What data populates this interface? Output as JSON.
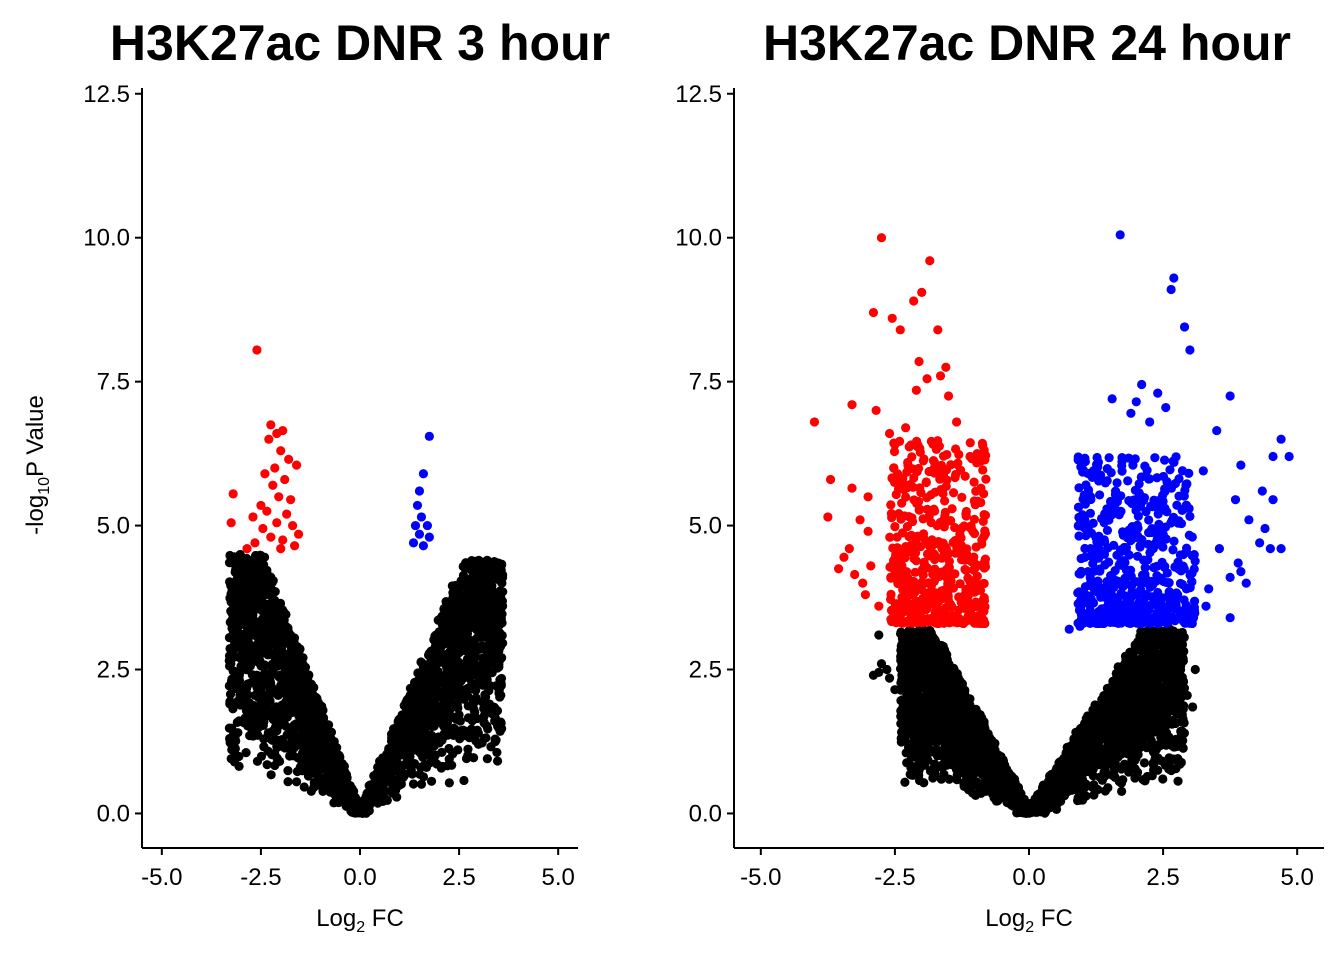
{
  "chart_data": [
    {
      "type": "scatter",
      "title": "H3K27ac DNR 3 hour",
      "xlabel_base": "Log",
      "xlabel_sub": "2",
      "xlabel_tail": " FC",
      "ylabel_base": "-log",
      "ylabel_sub": "10",
      "ylabel_tail": "P Value",
      "xlim": [
        -5.5,
        5.5
      ],
      "ylim": [
        -0.6,
        12.6
      ],
      "xticks": [
        -5.0,
        -2.5,
        0.0,
        2.5,
        5.0
      ],
      "yticks": [
        0.0,
        2.5,
        5.0,
        7.5,
        10.0,
        12.5
      ],
      "xtick_labels": [
        "-5.0",
        "-2.5",
        "0.0",
        "2.5",
        "5.0"
      ],
      "ytick_labels": [
        "0.0",
        "2.5",
        "5.0",
        "7.5",
        "10.0",
        "12.5"
      ],
      "colors": {
        "down": "#ff0000",
        "up": "#0000ff",
        "ns": "#000000"
      },
      "threshold": 4.5,
      "cloud": {
        "left_max_fc": -3.3,
        "right_max_fc": 3.6,
        "left_max_y": 4.5,
        "right_max_y": 4.4,
        "count": 2600,
        "seed": 11
      },
      "series": [
        {
          "group": "down",
          "points": [
            [
              -2.6,
              8.05
            ],
            [
              -2.25,
              6.75
            ],
            [
              -2.1,
              6.6
            ],
            [
              -1.95,
              6.65
            ],
            [
              -2.3,
              6.5
            ],
            [
              -2.0,
              6.3
            ],
            [
              -1.8,
              6.15
            ],
            [
              -2.15,
              6.0
            ],
            [
              -1.6,
              6.05
            ],
            [
              -2.4,
              5.9
            ],
            [
              -1.9,
              5.8
            ],
            [
              -2.2,
              5.7
            ],
            [
              -3.2,
              5.55
            ],
            [
              -2.05,
              5.5
            ],
            [
              -1.75,
              5.45
            ],
            [
              -2.5,
              5.35
            ],
            [
              -2.35,
              5.25
            ],
            [
              -1.85,
              5.2
            ],
            [
              -2.7,
              5.15
            ],
            [
              -3.25,
              5.05
            ],
            [
              -2.1,
              5.05
            ],
            [
              -1.7,
              5.0
            ],
            [
              -2.45,
              4.95
            ],
            [
              -1.55,
              4.85
            ],
            [
              -2.25,
              4.8
            ],
            [
              -1.95,
              4.75
            ],
            [
              -2.65,
              4.7
            ],
            [
              -1.65,
              4.65
            ],
            [
              -2.85,
              4.6
            ],
            [
              -2.0,
              4.6
            ]
          ]
        },
        {
          "group": "up",
          "points": [
            [
              1.75,
              6.55
            ],
            [
              1.6,
              5.9
            ],
            [
              1.5,
              5.6
            ],
            [
              1.45,
              5.35
            ],
            [
              1.55,
              5.15
            ],
            [
              1.4,
              5.0
            ],
            [
              1.7,
              5.0
            ],
            [
              1.5,
              4.85
            ],
            [
              1.75,
              4.8
            ],
            [
              1.35,
              4.7
            ],
            [
              1.6,
              4.65
            ]
          ]
        },
        {
          "group": "ns",
          "points": [
            [
              3.6,
              3.85
            ],
            [
              3.2,
              2.85
            ],
            [
              3.1,
              2.7
            ],
            [
              2.9,
              2.5
            ],
            [
              2.6,
              2.35
            ],
            [
              2.6,
              2.05
            ],
            [
              2.0,
              1.75
            ],
            [
              -2.65,
              2.05
            ],
            [
              -3.1,
              3.5
            ],
            [
              -3.05,
              3.6
            ],
            [
              -2.3,
              2.0
            ],
            [
              -1.6,
              0.55
            ],
            [
              2.2,
              3.2
            ],
            [
              2.5,
              3.0
            ]
          ]
        }
      ]
    },
    {
      "type": "scatter",
      "title": "H3K27ac DNR 24 hour",
      "xlabel_base": "Log",
      "xlabel_sub": "2",
      "xlabel_tail": " FC",
      "xlim": [
        -5.5,
        5.5
      ],
      "ylim": [
        -0.6,
        12.6
      ],
      "xticks": [
        -5.0,
        -2.5,
        0.0,
        2.5,
        5.0
      ],
      "yticks": [
        0.0,
        2.5,
        5.0,
        7.5,
        10.0,
        12.5
      ],
      "xtick_labels": [
        "-5.0",
        "-2.5",
        "0.0",
        "2.5",
        "5.0"
      ],
      "ytick_labels": [
        "0.0",
        "2.5",
        "5.0",
        "7.5",
        "10.0",
        "12.5"
      ],
      "colors": {
        "down": "#ff0000",
        "up": "#0000ff",
        "ns": "#000000"
      },
      "threshold": 3.2,
      "cloud": {
        "left_max_fc": -2.4,
        "right_max_fc": 2.9,
        "left_max_y": 3.2,
        "right_max_y": 3.2,
        "count": 3200,
        "seed": 29
      },
      "dense": [
        {
          "group": "down",
          "x_min": -2.6,
          "x_max": -0.8,
          "y_min": 3.3,
          "y_max": 6.5,
          "count": 520,
          "seed": 5,
          "skew": 1.9
        },
        {
          "group": "up",
          "x_min": 0.9,
          "x_max": 3.1,
          "y_min": 3.3,
          "y_max": 6.2,
          "count": 560,
          "seed": 7,
          "skew": 1.9
        }
      ],
      "series": [
        {
          "group": "down",
          "points": [
            [
              -2.75,
              10.0
            ],
            [
              -1.85,
              9.6
            ],
            [
              -2.0,
              9.05
            ],
            [
              -2.15,
              8.9
            ],
            [
              -2.9,
              8.7
            ],
            [
              -2.55,
              8.6
            ],
            [
              -2.4,
              8.4
            ],
            [
              -1.7,
              8.4
            ],
            [
              -2.05,
              7.85
            ],
            [
              -1.55,
              7.75
            ],
            [
              -1.65,
              7.6
            ],
            [
              -1.9,
              7.55
            ],
            [
              -2.1,
              7.35
            ],
            [
              -1.5,
              7.25
            ],
            [
              -3.3,
              7.1
            ],
            [
              -2.85,
              7.0
            ],
            [
              -4.0,
              6.8
            ],
            [
              -2.6,
              6.6
            ],
            [
              -2.2,
              6.4
            ],
            [
              -1.75,
              6.45
            ],
            [
              -3.7,
              5.8
            ],
            [
              -3.3,
              5.65
            ],
            [
              -3.0,
              5.5
            ],
            [
              -3.75,
              5.15
            ],
            [
              -3.15,
              5.1
            ],
            [
              -3.0,
              4.9
            ],
            [
              -3.35,
              4.6
            ],
            [
              -3.45,
              4.45
            ],
            [
              -3.55,
              4.25
            ],
            [
              -3.1,
              4.0
            ],
            [
              -3.05,
              3.8
            ],
            [
              -2.8,
              3.6
            ],
            [
              -3.25,
              4.15
            ],
            [
              -1.1,
              6.2
            ],
            [
              -1.35,
              6.8
            ],
            [
              -0.9,
              5.4
            ],
            [
              -2.3,
              6.7
            ],
            [
              -2.45,
              5.9
            ],
            [
              -2.95,
              4.3
            ]
          ]
        },
        {
          "group": "up",
          "points": [
            [
              1.7,
              10.05
            ],
            [
              2.7,
              9.3
            ],
            [
              2.65,
              9.1
            ],
            [
              2.9,
              8.45
            ],
            [
              3.0,
              8.05
            ],
            [
              2.1,
              7.45
            ],
            [
              2.4,
              7.3
            ],
            [
              3.75,
              7.25
            ],
            [
              2.0,
              7.15
            ],
            [
              1.55,
              7.2
            ],
            [
              2.55,
              7.05
            ],
            [
              1.9,
              6.95
            ],
            [
              2.25,
              6.8
            ],
            [
              3.5,
              6.65
            ],
            [
              4.7,
              6.5
            ],
            [
              4.85,
              6.2
            ],
            [
              4.55,
              6.2
            ],
            [
              3.95,
              6.05
            ],
            [
              3.25,
              5.95
            ],
            [
              4.35,
              5.6
            ],
            [
              4.55,
              5.45
            ],
            [
              3.85,
              5.45
            ],
            [
              4.1,
              5.1
            ],
            [
              4.4,
              4.95
            ],
            [
              4.3,
              4.7
            ],
            [
              3.55,
              4.6
            ],
            [
              4.7,
              4.6
            ],
            [
              4.5,
              4.6
            ],
            [
              3.9,
              4.35
            ],
            [
              3.95,
              4.2
            ],
            [
              3.75,
              4.1
            ],
            [
              4.05,
              4.0
            ],
            [
              3.35,
              3.9
            ],
            [
              3.3,
              3.6
            ],
            [
              3.75,
              3.4
            ],
            [
              0.95,
              3.25
            ],
            [
              0.75,
              3.2
            ],
            [
              1.1,
              4.2
            ],
            [
              1.15,
              4.6
            ],
            [
              1.05,
              3.8
            ],
            [
              1.0,
              5.05
            ],
            [
              1.2,
              5.95
            ],
            [
              1.15,
              5.5
            ]
          ]
        },
        {
          "group": "ns",
          "points": [
            [
              -2.8,
              3.1
            ],
            [
              -2.75,
              2.6
            ],
            [
              -2.8,
              2.45
            ],
            [
              -2.6,
              2.35
            ],
            [
              -2.9,
              2.4
            ],
            [
              -2.5,
              2.15
            ],
            [
              -2.65,
              2.5
            ],
            [
              2.4,
              0.75
            ],
            [
              1.7,
              1.6
            ],
            [
              1.45,
              1.75
            ],
            [
              1.8,
              1.9
            ],
            [
              -1.4,
              1.25
            ],
            [
              -1.2,
              0.9
            ],
            [
              -0.95,
              1.15
            ],
            [
              -1.05,
              0.55
            ],
            [
              2.85,
              2.25
            ],
            [
              2.95,
              2.05
            ],
            [
              3.05,
              1.85
            ],
            [
              3.1,
              2.5
            ],
            [
              2.8,
              2.6
            ],
            [
              2.5,
              2.4
            ]
          ]
        }
      ]
    }
  ]
}
